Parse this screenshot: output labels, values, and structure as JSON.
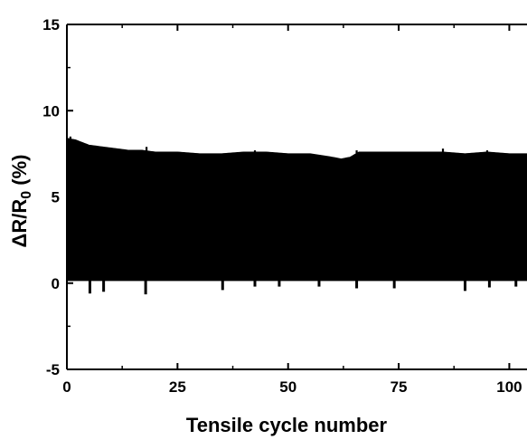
{
  "chart_data": {
    "type": "line",
    "xlabel": "Tensile cycle number",
    "ylabel_parts": [
      "ΔR/R",
      "0",
      " (%)"
    ],
    "xlim": [
      0,
      104
    ],
    "ylim": [
      -5,
      15
    ],
    "x_ticks": [
      0,
      25,
      50,
      75,
      100
    ],
    "x_tick_labels": [
      "0",
      "25",
      "50",
      "75",
      "100"
    ],
    "y_ticks": [
      -5,
      0,
      5,
      10,
      15
    ],
    "y_tick_labels": [
      "-5",
      "0",
      "5",
      "10",
      "15"
    ],
    "grid": false,
    "color": "#000000",
    "series": [
      {
        "upper_envelope": {
          "x": [
            0,
            2,
            5,
            8,
            11,
            14,
            17,
            20,
            25,
            30,
            35,
            40,
            45,
            50,
            55,
            60,
            62,
            64,
            66,
            70,
            75,
            80,
            85,
            90,
            95,
            100,
            104
          ],
          "y": [
            8.4,
            8.3,
            8.0,
            7.9,
            7.8,
            7.7,
            7.7,
            7.6,
            7.6,
            7.5,
            7.5,
            7.6,
            7.6,
            7.5,
            7.5,
            7.3,
            7.2,
            7.3,
            7.6,
            7.6,
            7.6,
            7.6,
            7.6,
            7.5,
            7.6,
            7.5,
            7.5
          ]
        },
        "lower_envelope": {
          "x": [
            0,
            104
          ],
          "y": [
            0.15,
            0.15
          ]
        },
        "spikes_up": {
          "x": [
            0.8,
            18,
            42.5,
            65.5,
            85,
            95
          ],
          "y": [
            8.5,
            7.9,
            7.7,
            7.7,
            7.8,
            7.7
          ]
        },
        "spikes_down": {
          "x": [
            5.2,
            8.3,
            17.8,
            35.2,
            42.5,
            48,
            57,
            65.5,
            74,
            90,
            95.5,
            101.5
          ],
          "y": [
            -0.6,
            -0.5,
            -0.65,
            -0.4,
            -0.2,
            -0.2,
            -0.2,
            -0.3,
            -0.3,
            -0.45,
            -0.25,
            -0.2
          ]
        }
      }
    ]
  }
}
